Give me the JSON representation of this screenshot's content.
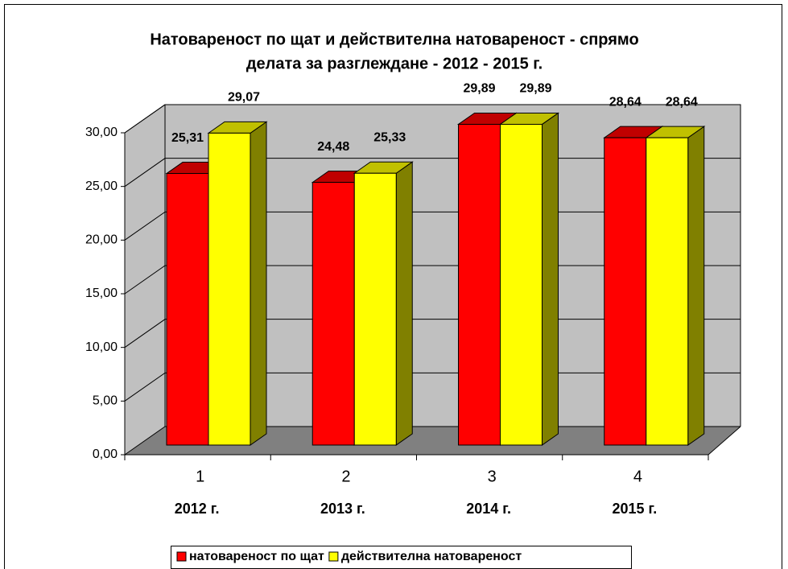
{
  "chart_data": {
    "type": "bar3d",
    "title": [
      "Натовареност по щат и действителна натовареност - спрямо",
      "делата за разглеждане - 2012 - 2015 г."
    ],
    "categories": [
      "1",
      "2",
      "3",
      "4"
    ],
    "category_sublabels": [
      "2012 г.",
      "2013 г.",
      "2014 г.",
      "2015 г."
    ],
    "series": [
      {
        "name": "натовареност по щат",
        "color": "#ff0000",
        "side_color": "#800000",
        "values": [
          25.31,
          24.48,
          29.89,
          28.64
        ],
        "value_labels": [
          "25,31",
          "24,48",
          "29,89",
          "28,64"
        ]
      },
      {
        "name": "действителна натовареност",
        "color": "#ffff00",
        "side_color": "#808000",
        "values": [
          29.07,
          25.33,
          29.89,
          28.64
        ],
        "value_labels": [
          "29,07",
          "25,33",
          "29,89",
          "28,64"
        ]
      }
    ],
    "ylim": [
      0,
      30
    ],
    "yticks": [
      {
        "value": 0,
        "label": "0,00"
      },
      {
        "value": 5,
        "label": "5,00"
      },
      {
        "value": 10,
        "label": "10,00"
      },
      {
        "value": 15,
        "label": "15,00"
      },
      {
        "value": 20,
        "label": "20,00"
      },
      {
        "value": 25,
        "label": "25,00"
      },
      {
        "value": 30,
        "label": "30,00"
      }
    ],
    "grid": true,
    "legend": "bottom"
  }
}
